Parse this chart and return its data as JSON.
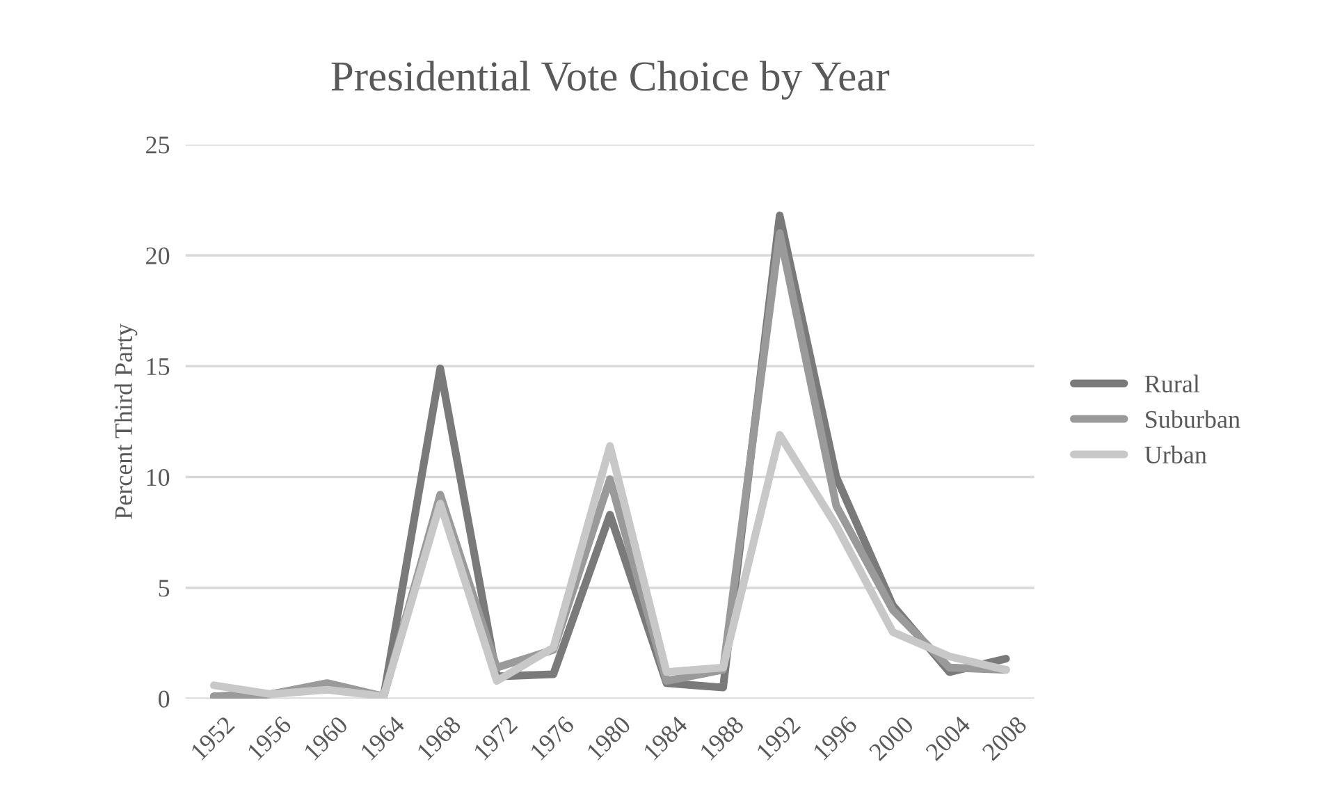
{
  "chart_data": {
    "type": "line",
    "title": "Presidential Vote Choice by Year",
    "ylabel": "Percent Third Party",
    "categories": [
      "1952",
      "1956",
      "1960",
      "1964",
      "1968",
      "1972",
      "1976",
      "1980",
      "1984",
      "1988",
      "1992",
      "1996",
      "2000",
      "2004",
      "2008"
    ],
    "series": [
      {
        "name": "Rural",
        "color": "#7a7a7a",
        "values": [
          0.1,
          0.2,
          0.6,
          0.1,
          14.9,
          1.0,
          1.1,
          8.3,
          0.7,
          0.5,
          21.8,
          10.0,
          4.2,
          1.2,
          1.8
        ]
      },
      {
        "name": "Suburban",
        "color": "#9a9a9a",
        "values": [
          0.1,
          0.2,
          0.7,
          0.1,
          9.2,
          1.4,
          2.2,
          9.9,
          0.8,
          1.3,
          21.0,
          8.7,
          4.0,
          1.4,
          1.3
        ]
      },
      {
        "name": "Urban",
        "color": "#c8c8c8",
        "values": [
          0.6,
          0.2,
          0.4,
          0.1,
          8.8,
          0.8,
          2.3,
          11.4,
          1.2,
          1.4,
          11.9,
          7.8,
          3.0,
          1.9,
          1.3
        ]
      }
    ],
    "ylim": [
      0,
      25
    ],
    "yticks": [
      0,
      5,
      10,
      15,
      20,
      25
    ],
    "grid": "y",
    "legend": "right",
    "marker": "none",
    "line_style": "solid"
  }
}
